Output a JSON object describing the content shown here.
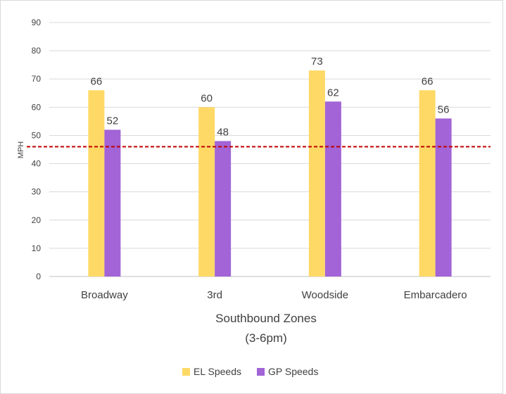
{
  "chart_data": {
    "type": "bar",
    "title": "",
    "xlabel": "Southbound Zones",
    "xlabel_line2": "(3-6pm)",
    "ylabel": "MPH",
    "ylim": [
      0,
      90
    ],
    "yticks": [
      0,
      10,
      20,
      30,
      40,
      50,
      60,
      70,
      80,
      90
    ],
    "grid": true,
    "legend_position": "bottom",
    "categories": [
      "Broadway",
      "3rd",
      "Woodside",
      "Embarcadero"
    ],
    "series": [
      {
        "name": "EL Speeds",
        "color": "#ffd966",
        "values": [
          66,
          60,
          73,
          66
        ]
      },
      {
        "name": "GP Speeds",
        "color": "#a264d6",
        "values": [
          52,
          48,
          62,
          56
        ]
      }
    ],
    "reference_line": {
      "value": 46,
      "color": "#c00000",
      "style": "dashed"
    }
  }
}
